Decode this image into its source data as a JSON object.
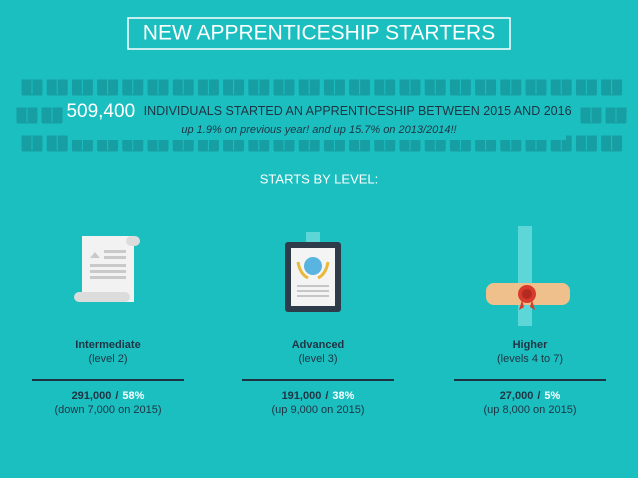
{
  "header": {
    "title": "NEW APPRENTICESHIP STARTERS"
  },
  "headline": {
    "number": "509,400",
    "text": "INDIVIDUALS STARTED AN APPRENTICESHIP BETWEEN 2015 AND 2016",
    "subtext": "up 1.9% on previous year! and up 15.7% on 2013/2014!!"
  },
  "section": {
    "title": "STARTS BY LEVEL:"
  },
  "separator": "/",
  "levels": [
    {
      "name": "Intermediate",
      "level": "(level 2)",
      "count": "291,000",
      "percent": "58%",
      "change": "(down 7,000 on 2015)"
    },
    {
      "name": "Advanced",
      "level": "(level 3)",
      "count": "191,000",
      "percent": "38%",
      "change": "(up 9,000 on 2015)"
    },
    {
      "name": "Higher",
      "level": "(levels 4 to 7)",
      "count": "27,000",
      "percent": "5%",
      "change": "(up 8,000 on 2015)"
    }
  ]
}
